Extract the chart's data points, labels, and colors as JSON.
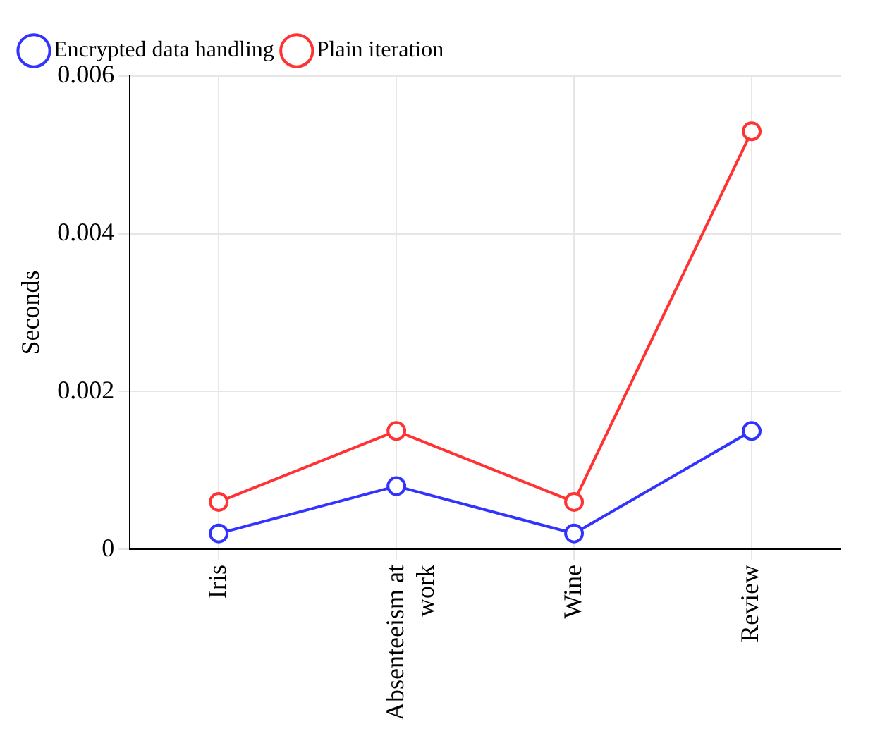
{
  "chart_data": {
    "type": "line",
    "ylabel": "Seconds",
    "categories": [
      "Iris",
      "Absenteeism at work",
      "Wine",
      "Review"
    ],
    "series": [
      {
        "name": "Encrypted data handling",
        "color": "#3333ff",
        "values": [
          0.0002,
          0.0008,
          0.0002,
          0.0015
        ]
      },
      {
        "name": "Plain iteration",
        "color": "#ff3333",
        "values": [
          0.0006,
          0.0015,
          0.0006,
          0.0053
        ]
      }
    ],
    "ylim": [
      0,
      0.006
    ],
    "yticks": [
      0,
      0.002,
      0.004,
      0.006
    ],
    "grid": true,
    "legend": "top left",
    "marker": "circle",
    "line_style": "solid"
  }
}
